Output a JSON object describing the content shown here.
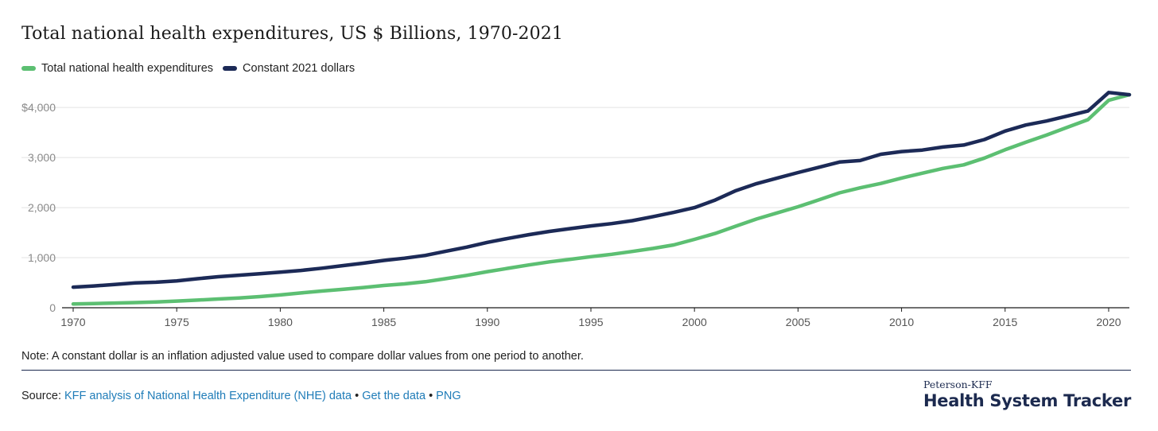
{
  "chart_data": {
    "type": "line",
    "title": "Total national health expenditures, US $ Billions, 1970-2021",
    "xlabel": "",
    "ylabel": "",
    "xlim": [
      1970,
      2021
    ],
    "ylim": [
      0,
      4400
    ],
    "x_ticks": [
      1970,
      1975,
      1980,
      1985,
      1990,
      1995,
      2000,
      2005,
      2010,
      2015,
      2020
    ],
    "y_ticks": [
      0,
      1000,
      2000,
      3000,
      4000
    ],
    "y_tick_labels": [
      "0",
      "1,000",
      "2,000",
      "3,000",
      "$4,000"
    ],
    "grid": "horizontal",
    "legend_position": "top-left",
    "x": [
      1970,
      1971,
      1972,
      1973,
      1974,
      1975,
      1976,
      1977,
      1978,
      1979,
      1980,
      1981,
      1982,
      1983,
      1984,
      1985,
      1986,
      1987,
      1988,
      1989,
      1990,
      1991,
      1992,
      1993,
      1994,
      1995,
      1996,
      1997,
      1998,
      1999,
      2000,
      2001,
      2002,
      2003,
      2004,
      2005,
      2006,
      2007,
      2008,
      2009,
      2010,
      2011,
      2012,
      2013,
      2014,
      2015,
      2016,
      2017,
      2018,
      2019,
      2020,
      2021
    ],
    "series": [
      {
        "name": "Total national health expenditures",
        "color": "#5cbf72",
        "values": [
          75,
          83,
          93,
          103,
          116,
          133,
          153,
          174,
          196,
          222,
          255,
          295,
          333,
          367,
          404,
          444,
          476,
          519,
          581,
          647,
          721,
          788,
          855,
          917,
          967,
          1019,
          1068,
          1124,
          1185,
          1255,
          1366,
          1484,
          1629,
          1772,
          1895,
          2018,
          2154,
          2296,
          2395,
          2483,
          2590,
          2688,
          2783,
          2854,
          2989,
          3156,
          3306,
          3448,
          3604,
          3757,
          4144,
          4255
        ]
      },
      {
        "name": "Constant 2021 dollars",
        "color": "#1c2a57",
        "values": [
          412,
          435,
          465,
          495,
          510,
          537,
          580,
          620,
          650,
          680,
          710,
          745,
          790,
          840,
          890,
          945,
          990,
          1045,
          1130,
          1210,
          1305,
          1385,
          1460,
          1525,
          1580,
          1635,
          1680,
          1740,
          1820,
          1905,
          2000,
          2150,
          2340,
          2480,
          2590,
          2700,
          2805,
          2910,
          2940,
          3065,
          3120,
          3150,
          3210,
          3250,
          3360,
          3530,
          3650,
          3730,
          3830,
          3930,
          4300,
          4255
        ]
      }
    ],
    "note": "Note: A constant dollar is an inflation adjusted value used to compare dollar values from one period to another."
  },
  "source": {
    "label": "Source:",
    "link1": "KFF analysis of National Health Expenditure (NHE) data",
    "sep1": "•",
    "link2": "Get the data",
    "sep2": "•",
    "link3": "PNG"
  },
  "brand": {
    "top": "Peterson-KFF",
    "main": "Health System Tracker",
    "color": "#1c2a4f"
  },
  "colors": {
    "link": "#1f7cb8",
    "grid": "#e3e3e3",
    "axis": "#1a1a1a",
    "tick_label": "#8a8a8a"
  }
}
